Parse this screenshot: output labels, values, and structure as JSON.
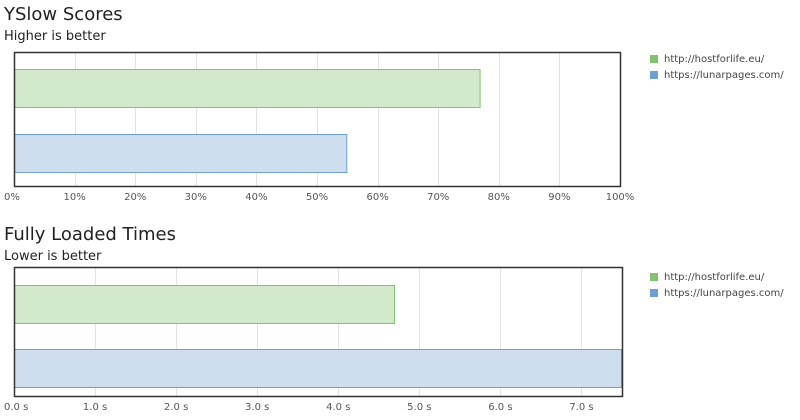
{
  "chart_data": [
    {
      "type": "bar",
      "orientation": "horizontal",
      "title": "YSlow Scores",
      "subtitle": "Higher is better",
      "xlim": [
        0,
        100
      ],
      "tick_labels": [
        "0%",
        "10%",
        "20%",
        "30%",
        "40%",
        "50%",
        "60%",
        "70%",
        "80%",
        "90%",
        "100%"
      ],
      "grid": true,
      "legend_placement": "right",
      "series": [
        {
          "name": "http://hostforlife.eu/",
          "value": 77,
          "fill": "#d3e9cb",
          "stroke": "#82c46d"
        },
        {
          "name": "https://lunarpages.com/",
          "value": 55,
          "fill": "#cfdeef",
          "stroke": "#6f9fd2"
        }
      ]
    },
    {
      "type": "bar",
      "orientation": "horizontal",
      "title": "Fully Loaded Times",
      "subtitle": "Lower is better",
      "xlim": [
        0,
        7.5
      ],
      "tick_labels": [
        "0.0 s",
        "1.0 s",
        "2.0 s",
        "3.0 s",
        "4.0 s",
        "5.0 s",
        "6.0 s",
        "7.0 s"
      ],
      "grid": true,
      "legend_placement": "right",
      "series": [
        {
          "name": "http://hostforlife.eu/",
          "value": 4.7,
          "fill": "#d3e9cb",
          "stroke": "#82c46d"
        },
        {
          "name": "https://lunarpages.com/",
          "value": 7.5,
          "fill": "#cfdeef",
          "stroke": "#6f9fd2"
        }
      ]
    }
  ]
}
